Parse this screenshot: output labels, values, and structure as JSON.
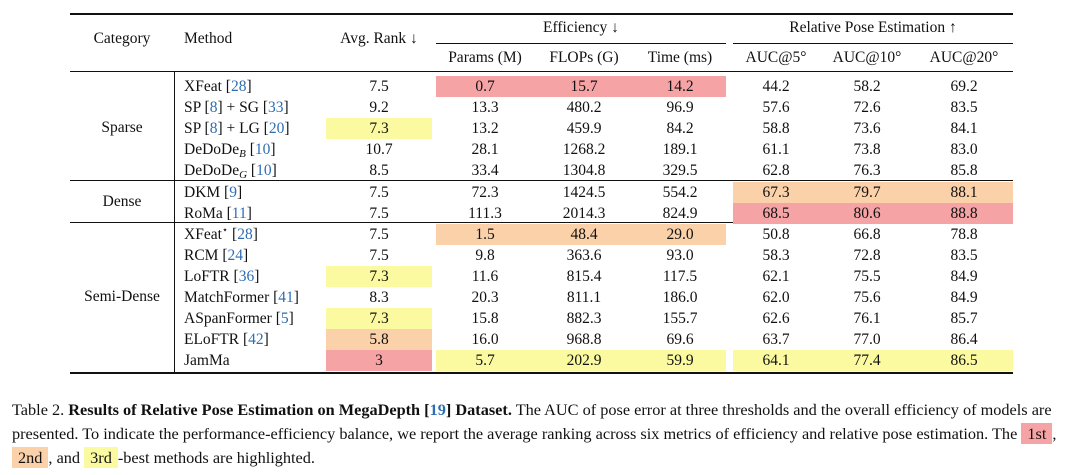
{
  "headers": {
    "category": "Category",
    "method": "Method",
    "avg_rank": "Avg. Rank ↓",
    "efficiency": "Efficiency ↓",
    "pose": "Relative Pose Estimation ↑",
    "params": "Params (M)",
    "flops": "FLOPs (G)",
    "time": "Time (ms)",
    "auc5": "AUC@5°",
    "auc10": "AUC@10°",
    "auc20": "AUC@20°"
  },
  "colors": {
    "first": "#f6a3a6",
    "second": "#fbd1a9",
    "third": "#fbfaa0"
  },
  "categories": [
    "Sparse",
    "Dense",
    "Semi-Dense"
  ],
  "rows": [
    {
      "name": "XFeat",
      "sub": "",
      "sup": "",
      "cite": "28",
      "extra": "",
      "vals": [
        "7.5",
        "0.7",
        "15.7",
        "14.2",
        "44.2",
        "58.2",
        "69.2"
      ],
      "hl": [
        0,
        1,
        1,
        1,
        0,
        0,
        0
      ]
    },
    {
      "name": "SP",
      "sub": "",
      "sup": "",
      "cite": "8",
      "extra": "SG",
      "extra_cite": "33",
      "vals": [
        "9.2",
        "13.3",
        "480.2",
        "96.9",
        "57.6",
        "72.6",
        "83.5"
      ],
      "hl": [
        0,
        0,
        0,
        0,
        0,
        0,
        0
      ]
    },
    {
      "name": "SP",
      "sub": "",
      "sup": "",
      "cite": "8",
      "extra": "LG",
      "extra_cite": "20",
      "vals": [
        "7.3",
        "13.2",
        "459.9",
        "84.2",
        "58.8",
        "73.6",
        "84.1"
      ],
      "hl": [
        3,
        0,
        0,
        0,
        0,
        0,
        0
      ]
    },
    {
      "name": "DeDoDe",
      "sub": "B",
      "sup": "",
      "cite": "10",
      "extra": "",
      "vals": [
        "10.7",
        "28.1",
        "1268.2",
        "189.1",
        "61.1",
        "73.8",
        "83.0"
      ],
      "hl": [
        0,
        0,
        0,
        0,
        0,
        0,
        0
      ]
    },
    {
      "name": "DeDoDe",
      "sub": "G",
      "sup": "",
      "cite": "10",
      "extra": "",
      "vals": [
        "8.5",
        "33.4",
        "1304.8",
        "329.5",
        "62.8",
        "76.3",
        "85.8"
      ],
      "hl": [
        0,
        0,
        0,
        0,
        0,
        0,
        0
      ]
    },
    {
      "name": "DKM",
      "sub": "",
      "sup": "",
      "cite": "9",
      "extra": "",
      "vals": [
        "7.5",
        "72.3",
        "1424.5",
        "554.2",
        "67.3",
        "79.7",
        "88.1"
      ],
      "hl": [
        0,
        0,
        0,
        0,
        2,
        2,
        2
      ]
    },
    {
      "name": "RoMa",
      "sub": "",
      "sup": "",
      "cite": "11",
      "extra": "",
      "vals": [
        "7.5",
        "111.3",
        "2014.3",
        "824.9",
        "68.5",
        "80.6",
        "88.8"
      ],
      "hl": [
        0,
        0,
        0,
        0,
        1,
        1,
        1
      ]
    },
    {
      "name": "XFeat",
      "sub": "",
      "sup": "⋆",
      "cite": "28",
      "extra": "",
      "vals": [
        "7.5",
        "1.5",
        "48.4",
        "29.0",
        "50.8",
        "66.8",
        "78.8"
      ],
      "hl": [
        0,
        2,
        2,
        2,
        0,
        0,
        0
      ]
    },
    {
      "name": "RCM",
      "sub": "",
      "sup": "",
      "cite": "24",
      "extra": "",
      "vals": [
        "7.5",
        "9.8",
        "363.6",
        "93.0",
        "58.3",
        "72.8",
        "83.5"
      ],
      "hl": [
        0,
        0,
        0,
        0,
        0,
        0,
        0
      ]
    },
    {
      "name": "LoFTR",
      "sub": "",
      "sup": "",
      "cite": "36",
      "extra": "",
      "vals": [
        "7.3",
        "11.6",
        "815.4",
        "117.5",
        "62.1",
        "75.5",
        "84.9"
      ],
      "hl": [
        3,
        0,
        0,
        0,
        0,
        0,
        0
      ]
    },
    {
      "name": "MatchFormer",
      "sub": "",
      "sup": "",
      "cite": "41",
      "extra": "",
      "vals": [
        "8.3",
        "20.3",
        "811.1",
        "186.0",
        "62.0",
        "75.6",
        "84.9"
      ],
      "hl": [
        0,
        0,
        0,
        0,
        0,
        0,
        0
      ]
    },
    {
      "name": "ASpanFormer",
      "sub": "",
      "sup": "",
      "cite": "5",
      "extra": "",
      "vals": [
        "7.3",
        "15.8",
        "882.3",
        "155.7",
        "62.6",
        "76.1",
        "85.7"
      ],
      "hl": [
        3,
        0,
        0,
        0,
        0,
        0,
        0
      ]
    },
    {
      "name": "ELoFTR",
      "sub": "",
      "sup": "",
      "cite": "42",
      "extra": "",
      "vals": [
        "5.8",
        "16.0",
        "968.8",
        "69.6",
        "63.7",
        "77.0",
        "86.4"
      ],
      "hl": [
        2,
        0,
        0,
        0,
        0,
        0,
        0
      ]
    },
    {
      "name": "JamMa",
      "sub": "",
      "sup": "",
      "cite": "",
      "extra": "",
      "vals": [
        "3",
        "5.7",
        "202.9",
        "59.9",
        "64.1",
        "77.4",
        "86.5"
      ],
      "hl": [
        1,
        3,
        3,
        3,
        3,
        3,
        3
      ]
    }
  ],
  "caption": {
    "label": "Table 2.",
    "bold_a": "Results of Relative Pose Estimation on MegaDepth [",
    "bold_cite": "19",
    "bold_b": "] Dataset.",
    "text": "The AUC of pose error at three thresholds and the overall efficiency of models are presented. To indicate the performance-efficiency balance, we report the average ranking across six metrics of efficiency and relative pose estimation. The",
    "chip1": "1st",
    "sep1": ",",
    "chip2": "2nd",
    "sep2": ", and",
    "chip3": "3rd",
    "tail": "-best methods are highlighted."
  }
}
